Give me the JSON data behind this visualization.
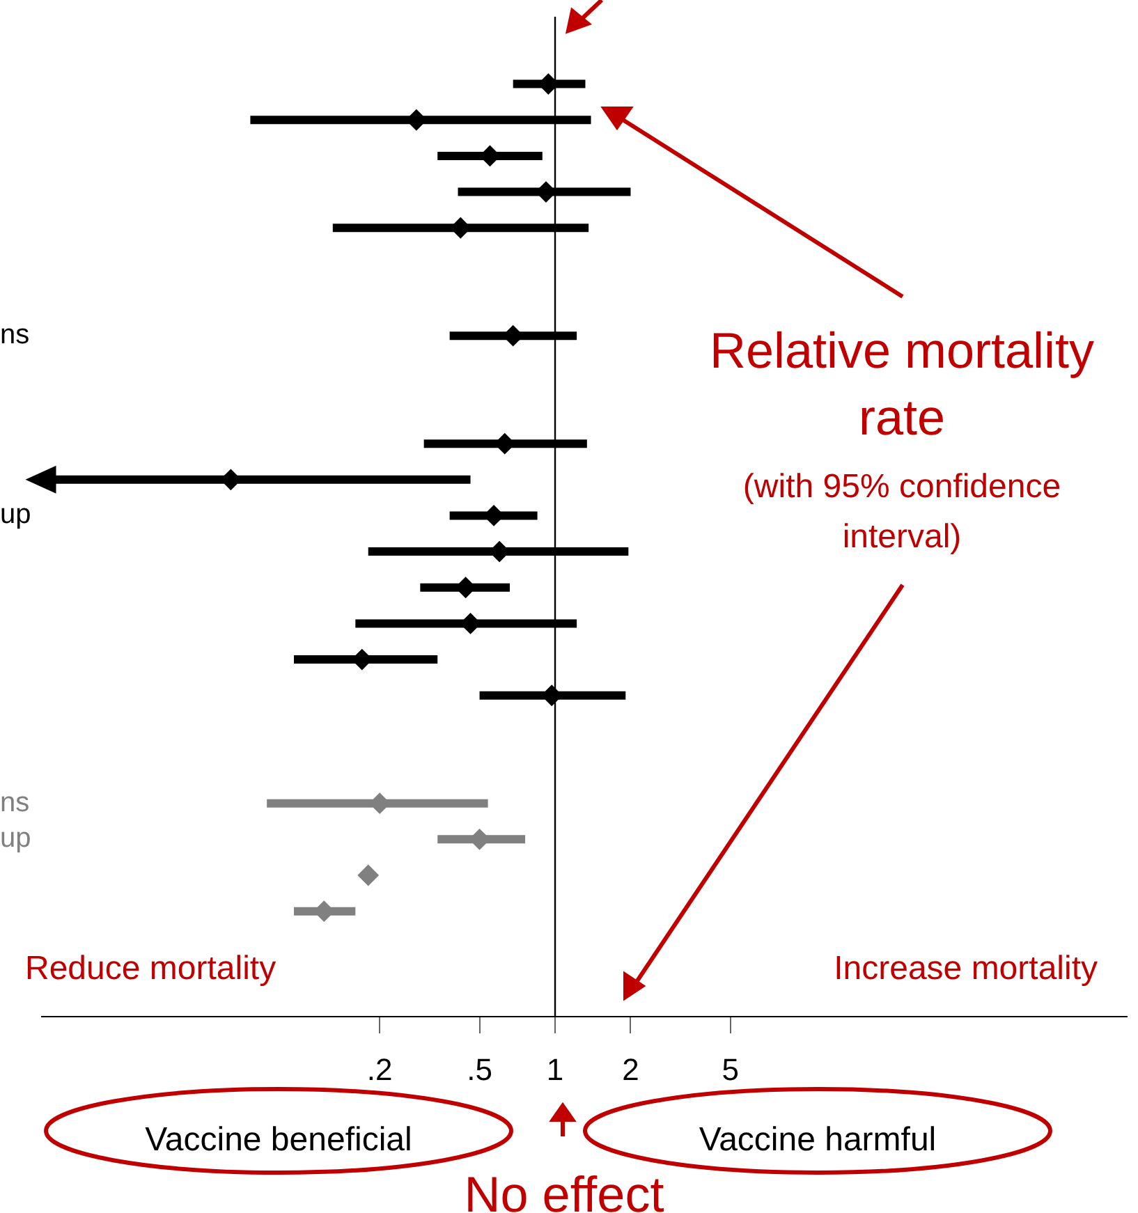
{
  "chart_data": {
    "type": "scatter",
    "categories": [
      null,
      null,
      null,
      null,
      null,
      null,
      null,
      "ns",
      null,
      null,
      null,
      null,
      "up",
      null,
      null,
      null,
      null,
      null,
      null,
      null,
      "ns",
      "up",
      null,
      null
    ],
    "series": [
      {
        "color": "#000000",
        "values": [
          0.94,
          0.28,
          0.55,
          0.92,
          0.42,
          null,
          null,
          0.68,
          null,
          null,
          0.63,
          0.051,
          0.57,
          0.6,
          0.44,
          0.46,
          0.17,
          0.97,
          null,
          null,
          null,
          null,
          null,
          null
        ],
        "errors": [
          [
            0.68,
            1.32
          ],
          [
            0.061,
            1.39
          ],
          [
            0.34,
            0.89
          ],
          [
            0.41,
            2.0
          ],
          [
            0.13,
            1.36
          ],
          null,
          null,
          [
            0.38,
            1.22
          ],
          null,
          null,
          [
            0.3,
            1.34
          ],
          [
            0.01,
            0.46
          ],
          [
            0.38,
            0.85
          ],
          [
            0.18,
            1.96
          ],
          [
            0.29,
            0.66
          ],
          [
            0.16,
            1.22
          ],
          [
            0.091,
            0.34
          ],
          [
            0.5,
            1.91
          ],
          null,
          null,
          null,
          null,
          null,
          null
        ]
      },
      {
        "color": "#808080",
        "values": [
          null,
          null,
          null,
          null,
          null,
          null,
          null,
          null,
          null,
          null,
          null,
          null,
          null,
          null,
          null,
          null,
          null,
          null,
          null,
          null,
          0.2,
          0.5,
          0.18,
          0.12
        ],
        "errors": [
          null,
          null,
          null,
          null,
          null,
          null,
          null,
          null,
          null,
          null,
          null,
          null,
          null,
          null,
          null,
          null,
          null,
          null,
          null,
          null,
          [
            0.071,
            0.54
          ],
          [
            0.34,
            0.76
          ],
          null,
          [
            0.091,
            0.16
          ]
        ]
      }
    ],
    "orientation": "horizontal",
    "log": "x",
    "xlim": [
      0.009,
      190
    ],
    "xticks": [
      {
        "value": 0.2,
        "label": ".2"
      },
      {
        "value": 0.5,
        "label": ".5"
      },
      1,
      2,
      5
    ],
    "marker": "diamond",
    "grid": false,
    "legend": false,
    "ref_lines": [
      {
        "axis": "x",
        "value": 1,
        "color": "#000000"
      }
    ],
    "annotations": [
      "Relative mortality rate",
      "(with 95% confidence interval)",
      "Reduce mortality",
      "Increase mortality",
      "Vaccine beneficial",
      "Vaccine harmful",
      "No effect"
    ]
  }
}
